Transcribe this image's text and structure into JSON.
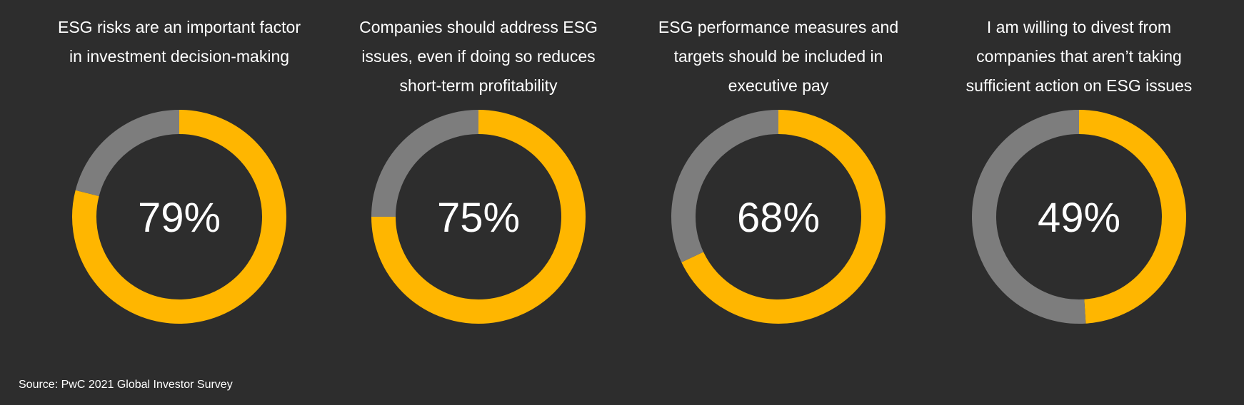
{
  "chart_data": [
    {
      "type": "pie",
      "subtype": "donut",
      "title_lines": [
        "ESG risks are an important factor",
        "in investment decision-making"
      ],
      "values": [
        79,
        21
      ],
      "label": "79%"
    },
    {
      "type": "pie",
      "subtype": "donut",
      "title_lines": [
        "Companies should address ESG",
        "issues, even if doing so reduces",
        "short-term profitability"
      ],
      "values": [
        75,
        25
      ],
      "label": "75%"
    },
    {
      "type": "pie",
      "subtype": "donut",
      "title_lines": [
        "ESG performance measures and",
        "targets should be included in",
        "executive pay"
      ],
      "values": [
        68,
        32
      ],
      "label": "68%"
    },
    {
      "type": "pie",
      "subtype": "donut",
      "title_lines": [
        "I am willing to divest from",
        "companies that aren’t taking",
        "sufficient action on ESG issues"
      ],
      "values": [
        49,
        51
      ],
      "label": "49%"
    }
  ],
  "colors": {
    "background": "#2d2d2d",
    "agree": "#ffb600",
    "remainder": "#7d7d7d"
  },
  "source": "Source: PwC 2021 Global Investor Survey"
}
